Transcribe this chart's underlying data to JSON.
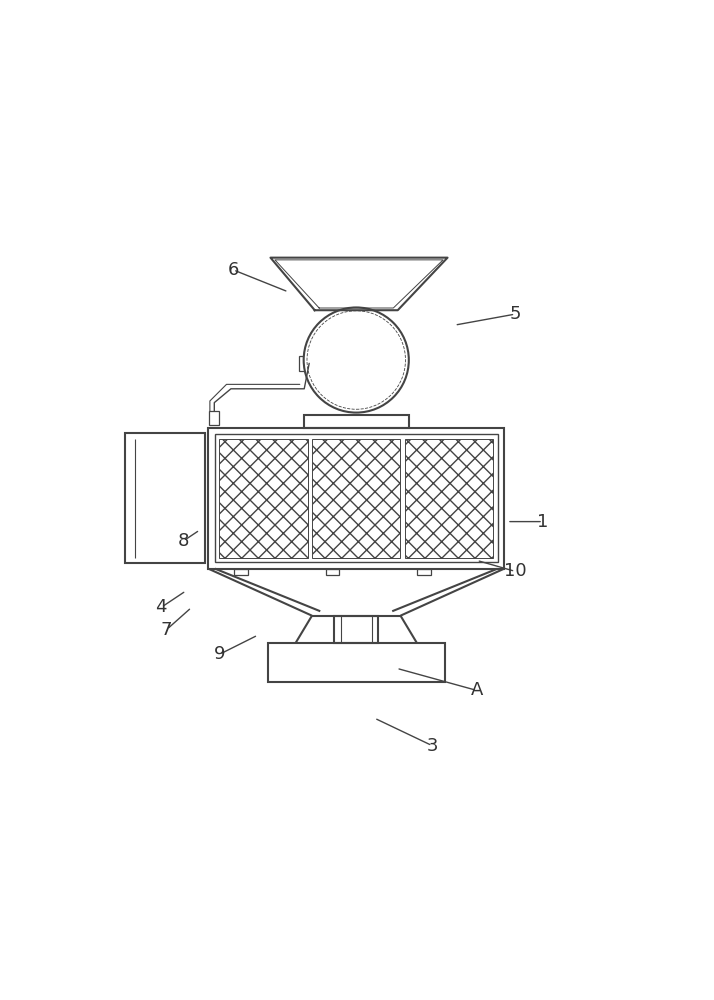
{
  "bg_color": "#ffffff",
  "line_color": "#444444",
  "label_color": "#333333",
  "figsize": [
    7.14,
    10.0
  ],
  "dpi": 100,
  "leaders": [
    [
      "1",
      [
        0.82,
        0.47
      ],
      [
        0.755,
        0.47
      ]
    ],
    [
      "3",
      [
        0.62,
        0.065
      ],
      [
        0.515,
        0.115
      ]
    ],
    [
      "4",
      [
        0.13,
        0.315
      ],
      [
        0.175,
        0.345
      ]
    ],
    [
      "5",
      [
        0.77,
        0.845
      ],
      [
        0.66,
        0.825
      ]
    ],
    [
      "6",
      [
        0.26,
        0.925
      ],
      [
        0.36,
        0.885
      ]
    ],
    [
      "7",
      [
        0.14,
        0.275
      ],
      [
        0.185,
        0.315
      ]
    ],
    [
      "8",
      [
        0.17,
        0.435
      ],
      [
        0.2,
        0.455
      ]
    ],
    [
      "9",
      [
        0.235,
        0.23
      ],
      [
        0.305,
        0.265
      ]
    ],
    [
      "10",
      [
        0.77,
        0.38
      ],
      [
        0.7,
        0.4
      ]
    ],
    [
      "A",
      [
        0.7,
        0.165
      ],
      [
        0.555,
        0.205
      ]
    ]
  ]
}
